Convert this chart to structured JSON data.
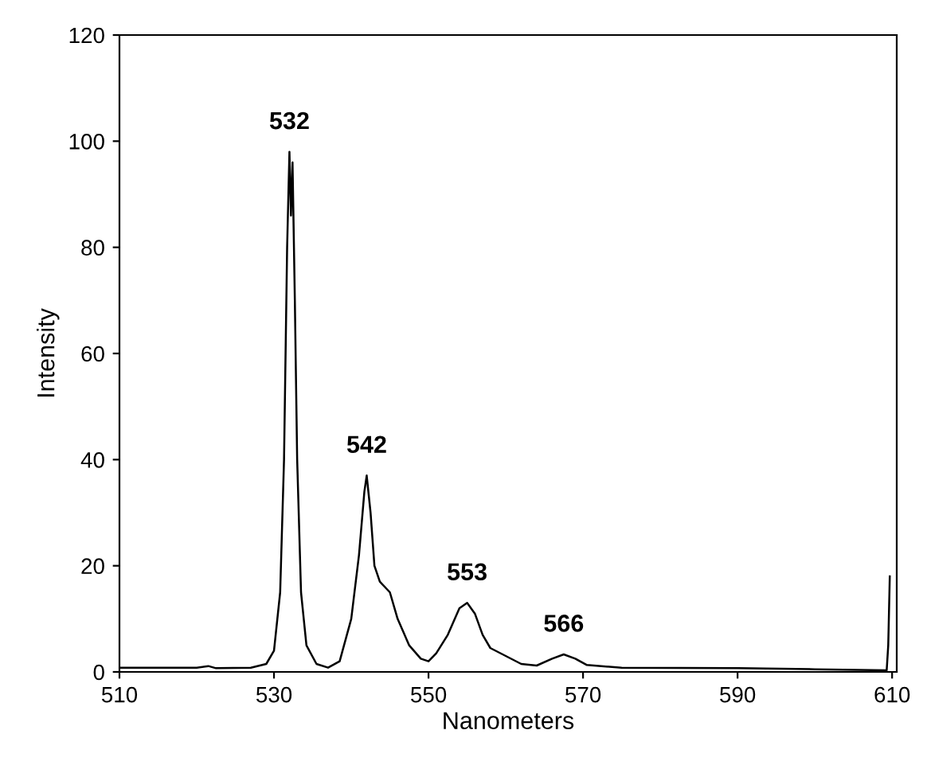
{
  "chart_data": {
    "type": "line",
    "xlabel": "Nanometers",
    "ylabel": "Intensity",
    "series": [
      {
        "color": "#000000",
        "x": [
          510,
          515,
          520,
          521.5,
          522.5,
          527,
          529,
          530,
          530.8,
          531.3,
          531.7,
          532,
          532.2,
          532.4,
          532.7,
          533,
          533.5,
          534.2,
          535.5,
          537,
          538.5,
          540,
          541,
          541.7,
          542,
          542.5,
          543,
          543.7,
          545,
          546,
          547.5,
          549,
          550,
          551,
          552.5,
          554,
          555,
          556,
          557,
          558,
          560,
          562,
          564,
          566,
          567.5,
          569,
          570.5,
          575,
          590,
          600,
          609.3,
          609.5,
          609.7
        ],
        "values": [
          0.8,
          0.8,
          0.8,
          1.1,
          0.7,
          0.8,
          1.5,
          4,
          15,
          40,
          80,
          98,
          86,
          96,
          70,
          40,
          15,
          5,
          1.5,
          0.8,
          2,
          10,
          22,
          34,
          37,
          30,
          20,
          17,
          15,
          10,
          5,
          2.5,
          2,
          3.5,
          7,
          12,
          13,
          11,
          7,
          4.5,
          3,
          1.5,
          1.2,
          2.5,
          3.3,
          2.5,
          1.3,
          0.8,
          0.7,
          0.5,
          0.3,
          5,
          18
        ]
      }
    ],
    "annotations": [
      {
        "text": "532",
        "x": 532,
        "y": 98
      },
      {
        "text": "542",
        "x": 542,
        "y": 37
      },
      {
        "text": "553",
        "x": 555,
        "y": 13
      },
      {
        "text": "566",
        "x": 567.5,
        "y": 3.3
      }
    ],
    "xlim": [
      510,
      610.6
    ],
    "ylim": [
      0,
      120
    ],
    "xticks": [
      510,
      530,
      550,
      570,
      590,
      610
    ],
    "yticks": [
      0,
      20,
      40,
      60,
      80,
      100,
      120
    ],
    "grid": false,
    "legend": false,
    "marker": "none",
    "line_style": "solid"
  }
}
